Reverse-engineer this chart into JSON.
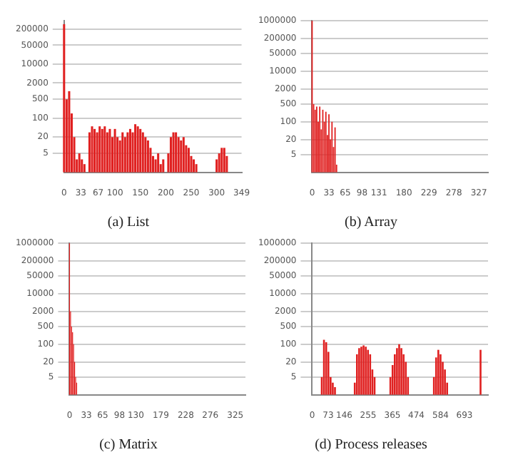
{
  "chart_data": [
    {
      "type": "bar",
      "title": "(a) List",
      "color": "#e02020",
      "log": "y",
      "grid": "y",
      "xlim": [
        0,
        349
      ],
      "xticks": [
        0,
        33,
        67,
        100,
        150,
        200,
        250,
        300,
        349
      ],
      "ylim": [
        1,
        400000
      ],
      "yticks": [
        5,
        20,
        100,
        500,
        2000,
        10000,
        50000,
        200000
      ],
      "x": [
        0,
        5,
        10,
        15,
        20,
        25,
        30,
        35,
        40,
        45,
        50,
        55,
        60,
        65,
        70,
        75,
        80,
        85,
        90,
        95,
        100,
        105,
        110,
        115,
        120,
        125,
        130,
        135,
        140,
        145,
        150,
        155,
        160,
        165,
        170,
        175,
        180,
        185,
        190,
        195,
        200,
        205,
        210,
        215,
        220,
        225,
        230,
        235,
        240,
        245,
        250,
        255,
        260,
        265,
        300,
        305,
        310,
        315,
        320
      ],
      "values": [
        300000,
        500,
        1000,
        150,
        20,
        3,
        5,
        3,
        2,
        null,
        30,
        50,
        40,
        30,
        50,
        40,
        50,
        30,
        40,
        20,
        40,
        20,
        15,
        30,
        20,
        30,
        40,
        30,
        60,
        50,
        40,
        30,
        20,
        15,
        8,
        4,
        3,
        5,
        2,
        3,
        null,
        5,
        20,
        30,
        30,
        20,
        15,
        20,
        10,
        8,
        4,
        3,
        2,
        null,
        3,
        5,
        8,
        8,
        4
      ]
    },
    {
      "type": "bar",
      "title": "(b) Array",
      "color": "#e02020",
      "log": "y",
      "grid": "y",
      "xlim": [
        0,
        345
      ],
      "xticks": [
        0,
        33,
        65,
        98,
        131,
        180,
        229,
        278,
        327
      ],
      "ylim": [
        1,
        1000000
      ],
      "yticks": [
        5,
        20,
        100,
        500,
        2000,
        10000,
        50000,
        200000,
        1000000
      ],
      "x": [
        0,
        3,
        6,
        9,
        12,
        15,
        18,
        21,
        24,
        27,
        30,
        33,
        36,
        39,
        42,
        45,
        48
      ],
      "values": [
        1000000,
        500,
        300,
        400,
        100,
        400,
        50,
        300,
        100,
        250,
        30,
        200,
        20,
        100,
        10,
        60,
        2
      ]
    },
    {
      "type": "bar",
      "title": "(c) Matrix",
      "color": "#e02020",
      "log": "y",
      "grid": "y",
      "xlim": [
        0,
        345
      ],
      "xticks": [
        0,
        33,
        65,
        98,
        130,
        179,
        228,
        276,
        325
      ],
      "ylim": [
        1,
        1000000
      ],
      "yticks": [
        5,
        20,
        100,
        500,
        2000,
        10000,
        50000,
        200000,
        1000000
      ],
      "x": [
        0,
        2,
        4,
        6,
        8,
        10,
        12,
        14
      ],
      "values": [
        1000000,
        2000,
        500,
        300,
        100,
        20,
        5,
        3
      ]
    },
    {
      "type": "bar",
      "title": "(d) Process releases",
      "color": "#e02020",
      "log": "y",
      "grid": "y",
      "xlim": [
        0,
        800
      ],
      "xticks": [
        0,
        73,
        146,
        255,
        365,
        474,
        584,
        693
      ],
      "ylim": [
        1,
        1000000
      ],
      "yticks": [
        5,
        20,
        100,
        500,
        2000,
        10000,
        50000,
        200000,
        1000000
      ],
      "x": [
        44,
        54,
        64,
        74,
        84,
        94,
        104,
        194,
        204,
        214,
        224,
        234,
        244,
        254,
        264,
        274,
        284,
        356,
        366,
        376,
        386,
        396,
        406,
        416,
        426,
        436,
        554,
        564,
        574,
        584,
        594,
        604,
        614,
        766
      ],
      "values": [
        5,
        150,
        120,
        50,
        5,
        3,
        2,
        3,
        40,
        70,
        80,
        90,
        80,
        60,
        40,
        10,
        5,
        5,
        15,
        40,
        70,
        100,
        70,
        40,
        20,
        5,
        5,
        30,
        60,
        40,
        20,
        10,
        3,
        60
      ]
    }
  ]
}
